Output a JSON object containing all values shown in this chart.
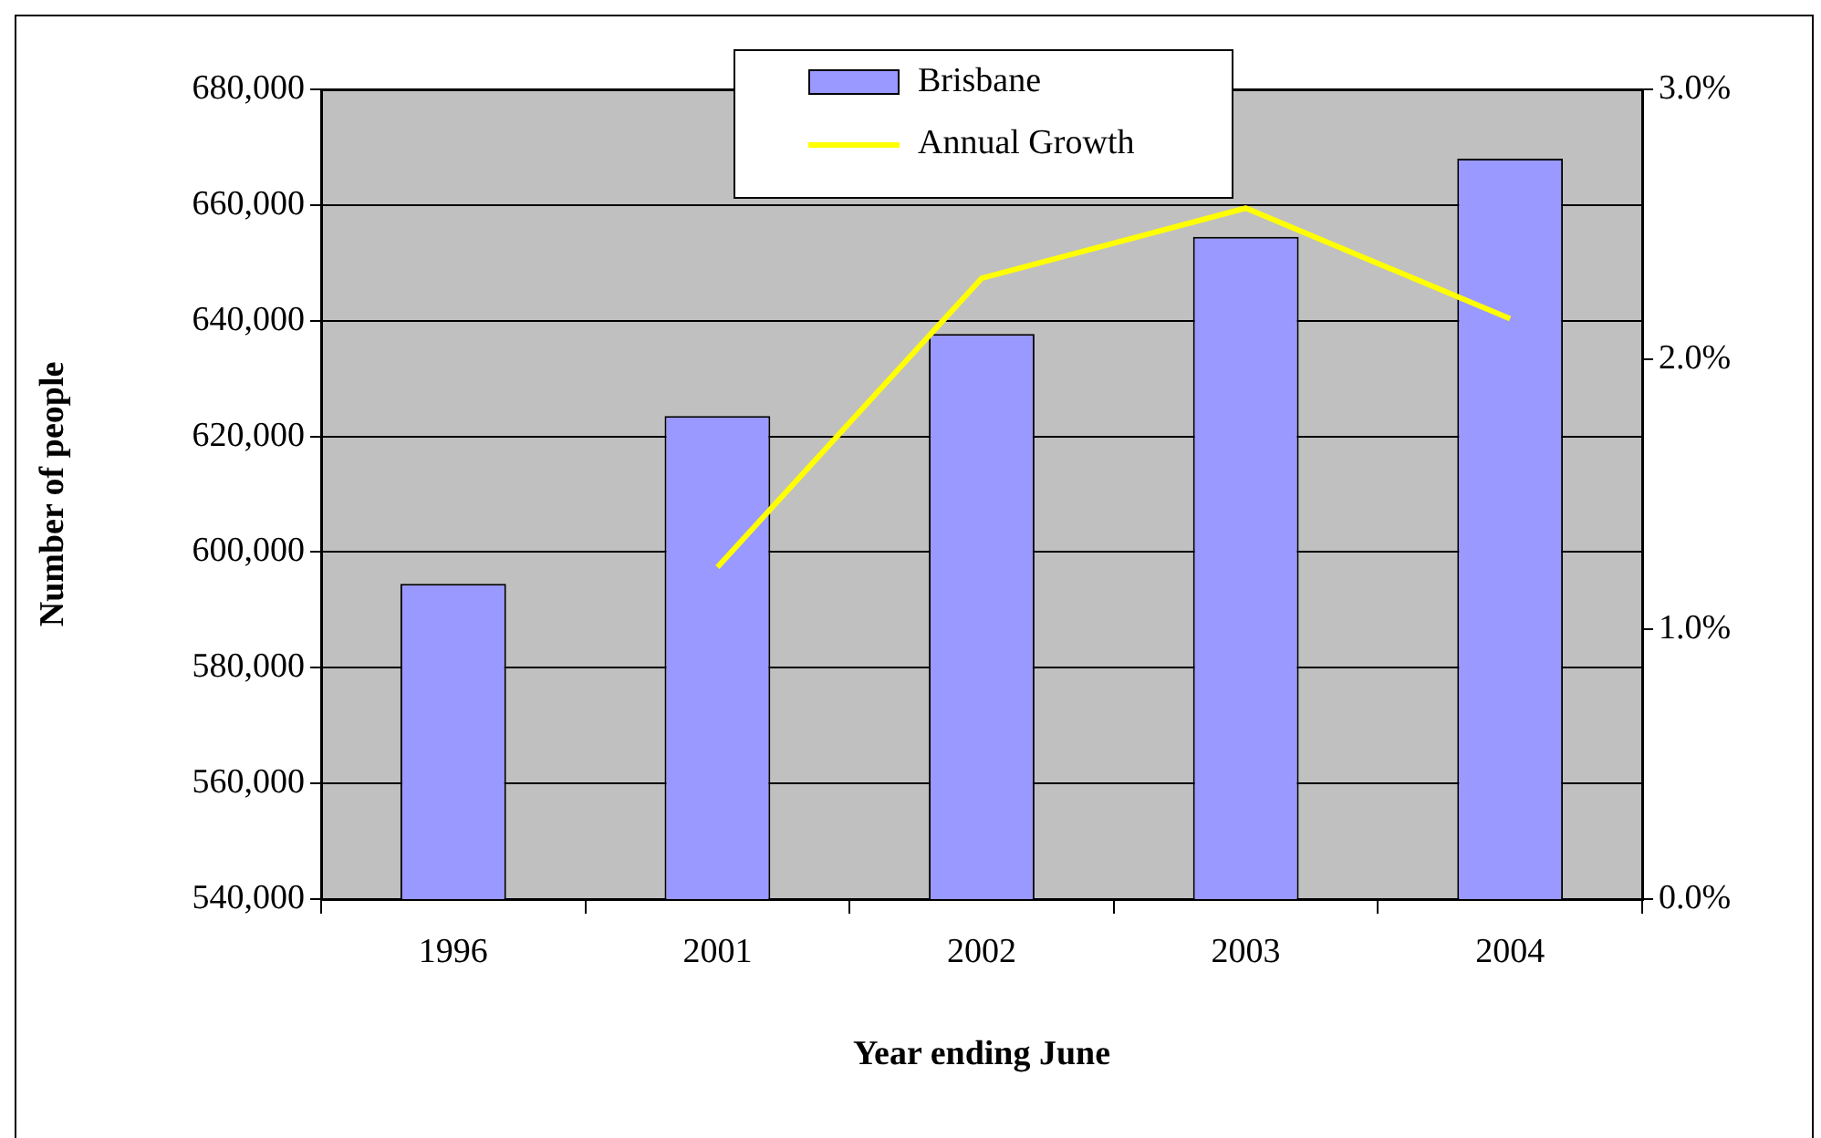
{
  "chart_data": {
    "type": "bar",
    "xlabel": "Year ending June",
    "ylabel": "Number of people",
    "categories": [
      "1996",
      "2001",
      "2002",
      "2003",
      "2004"
    ],
    "series": [
      {
        "name": "Brisbane",
        "color": "#9999ff",
        "values": [
          594500,
          623500,
          637700,
          654500,
          668000
        ]
      },
      {
        "name": "Annual Growth",
        "type": "line",
        "axis": "y2",
        "color": "#ffff00",
        "values": [
          null,
          1.23,
          2.3,
          2.56,
          2.15
        ]
      }
    ],
    "ylim": [
      540000,
      680000
    ],
    "yticks": [
      {
        "value": 540000,
        "label": "540,000"
      },
      {
        "value": 560000,
        "label": "560,000"
      },
      {
        "value": 580000,
        "label": "580,000"
      },
      {
        "value": 600000,
        "label": "600,000"
      },
      {
        "value": 620000,
        "label": "620,000"
      },
      {
        "value": 640000,
        "label": "640,000"
      },
      {
        "value": 660000,
        "label": "660,000"
      },
      {
        "value": 680000,
        "label": "680,000"
      }
    ],
    "y2lim": [
      0,
      3
    ],
    "y2ticks": [
      {
        "value": 0,
        "label": "0.0%"
      },
      {
        "value": 1,
        "label": "1.0%"
      },
      {
        "value": 2,
        "label": "2.0%"
      },
      {
        "value": 3,
        "label": "3.0%"
      }
    ],
    "grid": "y",
    "legend": "top",
    "marker": "none"
  }
}
